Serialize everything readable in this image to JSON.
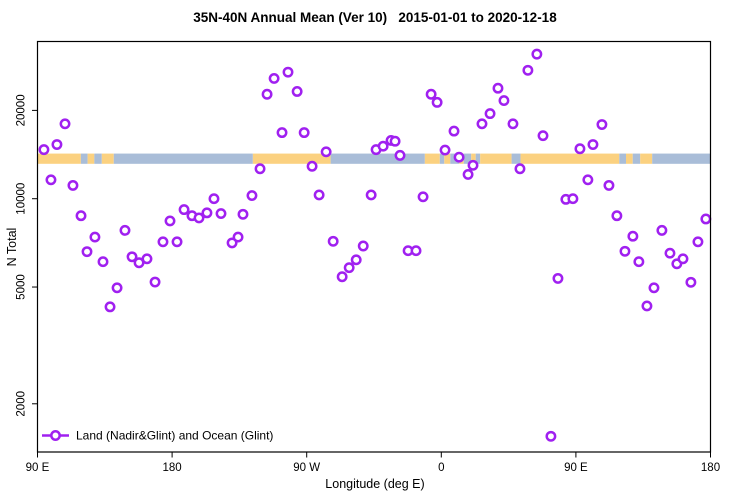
{
  "title": "35N-40N Annual Mean (Ver 10)   2015-01-01 to 2020-12-18",
  "chart_data": {
    "type": "scatter",
    "title": "35N-40N Annual Mean (Ver 10)   2015-01-01 to 2020-12-18",
    "xlabel": "Longitude (deg E)",
    "ylabel": "N Total",
    "x_axis": {
      "note": "longitude wraps eastward starting at 90E; axis units are degrees east of 0 continuing past 360",
      "range": [
        90,
        540
      ],
      "ticks": [
        90,
        180,
        270,
        360,
        450,
        540
      ],
      "tick_labels": [
        "90 E",
        "180",
        "90 W",
        "0",
        "90 E",
        "180"
      ]
    },
    "y_axis": {
      "scale": "log10",
      "range": [
        1370,
        34340
      ],
      "ticks": [
        2000,
        5000,
        10000,
        20000
      ],
      "tick_labels": [
        "2000",
        "5000",
        "10000",
        "20000"
      ]
    },
    "grid": "off",
    "legend": {
      "position": "bottom-left-inside",
      "label": "Land (Nadir&Glint) and Ocean (Glint)"
    },
    "colors": {
      "point_stroke": "#A020F0",
      "point_fill": "#ffffff",
      "land_band": "#FBD180",
      "ocean_band": "#A9BDD8",
      "axis": "#000000"
    },
    "map_band": {
      "description": "1-D land/ocean strip for 35N-40N drawn across the plot",
      "top_value": 14250,
      "bottom_value": 13150,
      "segments": [
        {
          "from": 90,
          "to": 119,
          "type": "land"
        },
        {
          "from": 119,
          "to": 123.5,
          "type": "ocean"
        },
        {
          "from": 123.5,
          "to": 128,
          "type": "land"
        },
        {
          "from": 128,
          "to": 133,
          "type": "ocean"
        },
        {
          "from": 133,
          "to": 141,
          "type": "land"
        },
        {
          "from": 141,
          "to": 234,
          "type": "ocean"
        },
        {
          "from": 234,
          "to": 286,
          "type": "land"
        },
        {
          "from": 286,
          "to": 349,
          "type": "ocean"
        },
        {
          "from": 349,
          "to": 359,
          "type": "land"
        },
        {
          "from": 359,
          "to": 362,
          "type": "ocean"
        },
        {
          "from": 362,
          "to": 366,
          "type": "land"
        },
        {
          "from": 366,
          "to": 372,
          "type": "ocean"
        },
        {
          "from": 372,
          "to": 375,
          "type": "land"
        },
        {
          "from": 375,
          "to": 380,
          "type": "ocean"
        },
        {
          "from": 380,
          "to": 383,
          "type": "land"
        },
        {
          "from": 383,
          "to": 386,
          "type": "ocean"
        },
        {
          "from": 386,
          "to": 407,
          "type": "land"
        },
        {
          "from": 407,
          "to": 413,
          "type": "ocean"
        },
        {
          "from": 413,
          "to": 479,
          "type": "land"
        },
        {
          "from": 479,
          "to": 483.5,
          "type": "ocean"
        },
        {
          "from": 483.5,
          "to": 488,
          "type": "land"
        },
        {
          "from": 488,
          "to": 493,
          "type": "ocean"
        },
        {
          "from": 493,
          "to": 501,
          "type": "land"
        },
        {
          "from": 501,
          "to": 540,
          "type": "ocean"
        }
      ]
    },
    "point_format": [
      "lon_axis_deg",
      "n_total"
    ],
    "points": [
      [
        94.3,
        14700
      ],
      [
        99.0,
        11600
      ],
      [
        103.0,
        15300
      ],
      [
        108.4,
        18000
      ],
      [
        113.7,
        11100
      ],
      [
        119.1,
        8750
      ],
      [
        123.1,
        6600
      ],
      [
        128.4,
        7400
      ],
      [
        133.8,
        6100
      ],
      [
        138.5,
        4280
      ],
      [
        143.2,
        4970
      ],
      [
        148.5,
        7800
      ],
      [
        153.2,
        6340
      ],
      [
        157.9,
        6050
      ],
      [
        163.2,
        6240
      ],
      [
        168.6,
        5200
      ],
      [
        173.9,
        7130
      ],
      [
        178.6,
        8400
      ],
      [
        183.3,
        7130
      ],
      [
        188.0,
        9180
      ],
      [
        193.3,
        8750
      ],
      [
        198.0,
        8600
      ],
      [
        203.3,
        8950
      ],
      [
        208.0,
        10000
      ],
      [
        212.7,
        8900
      ],
      [
        220.1,
        7070
      ],
      [
        224.1,
        7400
      ],
      [
        227.4,
        8850
      ],
      [
        233.4,
        10250
      ],
      [
        238.8,
        12650
      ],
      [
        243.5,
        22700
      ],
      [
        248.2,
        25700
      ],
      [
        253.5,
        16800
      ],
      [
        257.5,
        27000
      ],
      [
        263.6,
        23200
      ],
      [
        268.3,
        16800
      ],
      [
        273.6,
        12900
      ],
      [
        278.3,
        10300
      ],
      [
        283.0,
        14450
      ],
      [
        287.7,
        7160
      ],
      [
        293.7,
        5420
      ],
      [
        298.4,
        5820
      ],
      [
        303.1,
        6190
      ],
      [
        307.8,
        6900
      ],
      [
        313.1,
        10300
      ],
      [
        316.4,
        14700
      ],
      [
        321.1,
        15100
      ],
      [
        326.4,
        15800
      ],
      [
        329.1,
        15700
      ],
      [
        332.4,
        14050
      ],
      [
        337.8,
        6650
      ],
      [
        343.1,
        6650
      ],
      [
        347.8,
        10150
      ],
      [
        353.2,
        22700
      ],
      [
        357.2,
        21300
      ],
      [
        362.5,
        14650
      ],
      [
        368.5,
        17000
      ],
      [
        371.9,
        13850
      ],
      [
        377.9,
        12100
      ],
      [
        381.2,
        13000
      ],
      [
        387.2,
        18000
      ],
      [
        392.6,
        19500
      ],
      [
        397.9,
        23800
      ],
      [
        401.9,
        21600
      ],
      [
        407.9,
        18000
      ],
      [
        412.6,
        12650
      ],
      [
        417.9,
        27400
      ],
      [
        423.9,
        31100
      ],
      [
        428.0,
        16400
      ],
      [
        433.3,
        1550
      ],
      [
        438.0,
        5350
      ],
      [
        443.3,
        9950
      ],
      [
        448.0,
        10000
      ],
      [
        452.7,
        14800
      ],
      [
        458.0,
        11600
      ],
      [
        461.4,
        15300
      ],
      [
        467.4,
        17900
      ],
      [
        472.1,
        11100
      ],
      [
        477.4,
        8750
      ],
      [
        482.8,
        6620
      ],
      [
        488.1,
        7450
      ],
      [
        492.1,
        6100
      ],
      [
        497.5,
        4310
      ],
      [
        502.2,
        4970
      ],
      [
        507.5,
        7800
      ],
      [
        512.9,
        6520
      ],
      [
        517.5,
        6000
      ],
      [
        521.6,
        6240
      ],
      [
        526.9,
        5190
      ],
      [
        531.6,
        7130
      ],
      [
        536.9,
        8530
      ]
    ]
  }
}
